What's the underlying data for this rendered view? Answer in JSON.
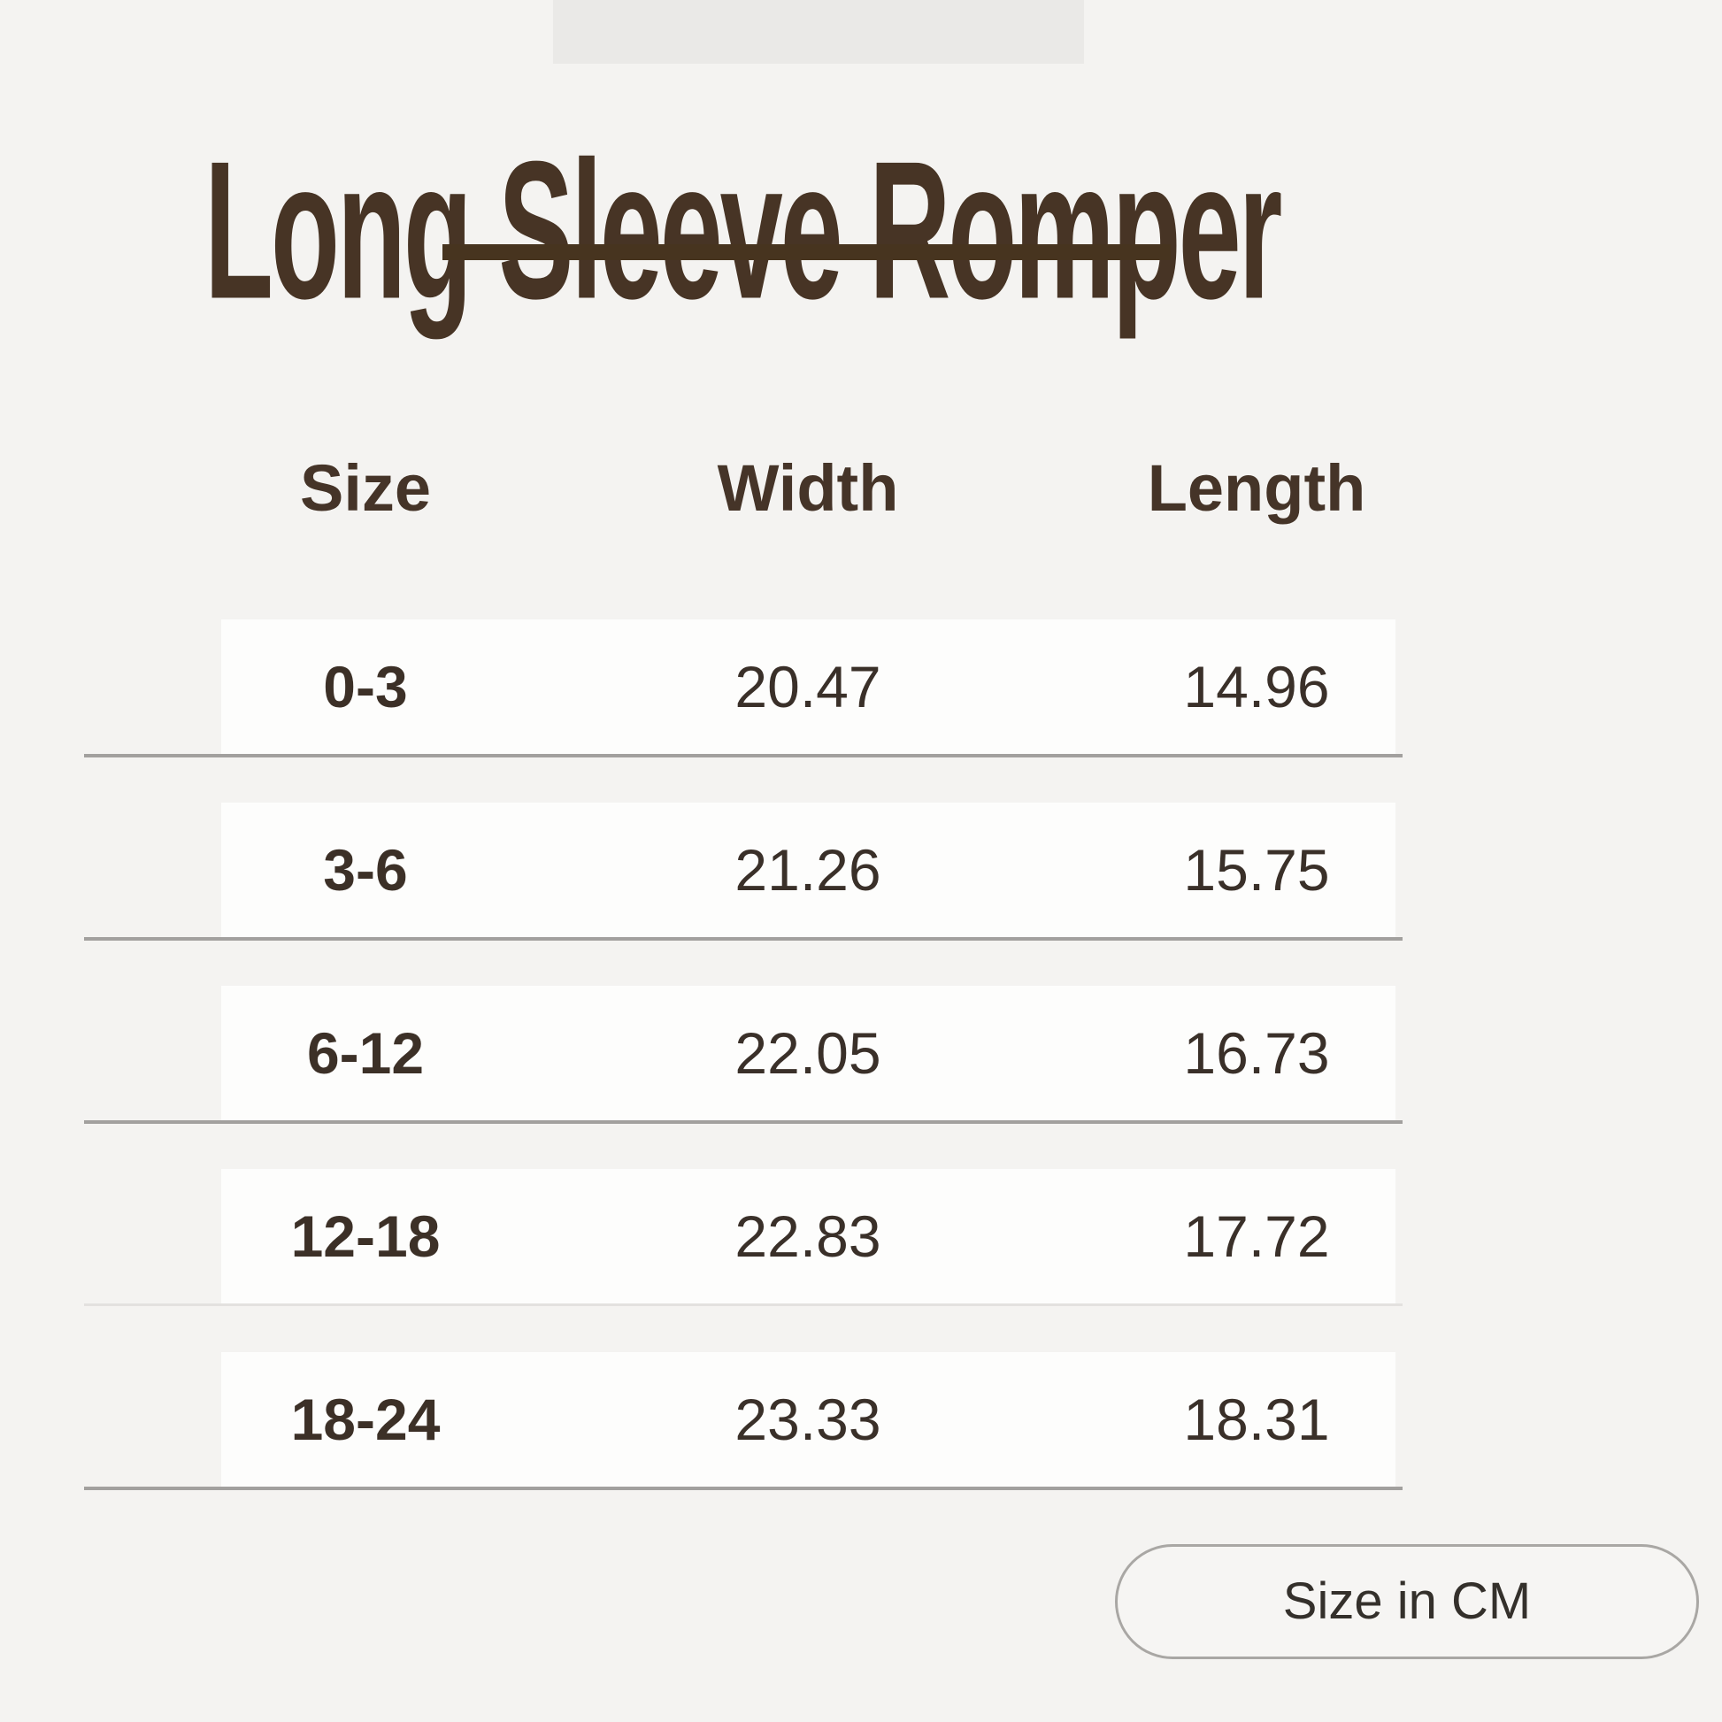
{
  "page": {
    "title": "Long Sleeve Romper",
    "unit_note": "Size in CM"
  },
  "table": {
    "headers": [
      "Size",
      "Width",
      "Length"
    ],
    "rows": [
      {
        "size": "0-3",
        "width": "20.47",
        "length": "14.96"
      },
      {
        "size": "3-6",
        "width": "21.26",
        "length": "15.75"
      },
      {
        "size": "6-12",
        "width": "22.05",
        "length": "16.73"
      },
      {
        "size": "12-18",
        "width": "22.83",
        "length": "17.72"
      },
      {
        "size": "18-24",
        "width": "23.33",
        "length": "18.31"
      }
    ]
  },
  "chart_data": {
    "type": "table",
    "title": "Long Sleeve Romper",
    "columns": [
      "Size",
      "Width",
      "Length"
    ],
    "rows": [
      [
        "0-3",
        20.47,
        14.96
      ],
      [
        "3-6",
        21.26,
        15.75
      ],
      [
        "6-12",
        22.05,
        16.73
      ],
      [
        "12-18",
        22.83,
        17.72
      ],
      [
        "18-24",
        23.33,
        18.31
      ]
    ],
    "note": "Size in CM",
    "layout": "white row bands on light gray background, thin gray separator lines, title with thick underline, unit badge bottom-right"
  },
  "colors": {
    "page_background": "#f4f3f1",
    "title_brown": "#473425",
    "row_band": "#fdfdfc",
    "separator_gray": "#a2a09e",
    "text_dark": "#3a3029",
    "pill_border": "#a9a7a4"
  }
}
